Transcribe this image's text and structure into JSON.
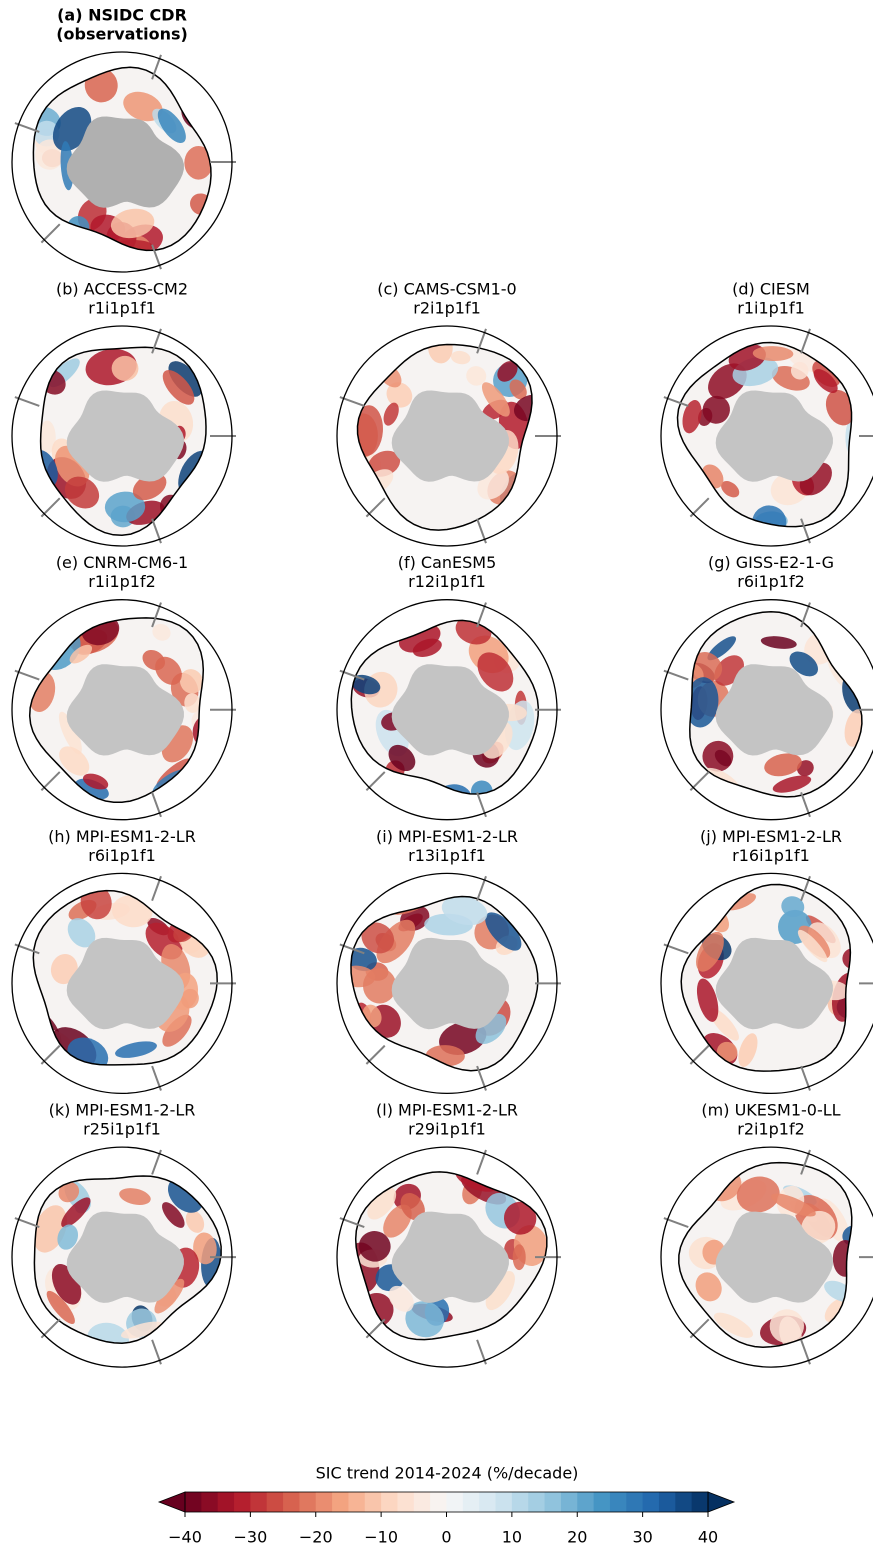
{
  "panels": [
    {
      "title": "(a) NSIDC CDR",
      "member": "(observations)"
    },
    {
      "title": "(b) ACCESS-CM2",
      "member": "r1i1p1f1"
    },
    {
      "title": "(c) CAMS-CSM1-0",
      "member": "r2i1p1f1"
    },
    {
      "title": "(d) CIESM",
      "member": "r1i1p1f1"
    },
    {
      "title": "(e) CNRM-CM6-1",
      "member": "r1i1p1f2"
    },
    {
      "title": "(f) CanESM5",
      "member": "r12i1p1f1"
    },
    {
      "title": "(g) GISS-E2-1-G",
      "member": "r6i1p1f2"
    },
    {
      "title": "(h) MPI-ESM1-2-LR",
      "member": "r6i1p1f1"
    },
    {
      "title": "(i) MPI-ESM1-2-LR",
      "member": "r13i1p1f1"
    },
    {
      "title": "(j) MPI-ESM1-2-LR",
      "member": "r16i1p1f1"
    },
    {
      "title": "(k) MPI-ESM1-2-LR",
      "member": "r25i1p1f1"
    },
    {
      "title": "(l) MPI-ESM1-2-LR",
      "member": "r29i1p1f1"
    },
    {
      "title": "(m) UKESM1-0-LL",
      "member": "r2i1p1f2"
    }
  ],
  "colorbar": {
    "label": "SIC trend 2014-2024 (%/decade)",
    "lim": [
      -40,
      40
    ],
    "ticks": [
      {
        "value": -40,
        "label": "−40"
      },
      {
        "value": -30,
        "label": "−30"
      },
      {
        "value": -20,
        "label": "−20"
      },
      {
        "value": -10,
        "label": "−10"
      },
      0,
      10,
      20,
      30,
      40
    ],
    "colormap": [
      "#67001f",
      "#b2182b",
      "#d6604d",
      "#f4a582",
      "#fddbc7",
      "#f7f7f7",
      "#d1e5f0",
      "#92c5de",
      "#4393c3",
      "#2166ac",
      "#053061"
    ]
  }
}
